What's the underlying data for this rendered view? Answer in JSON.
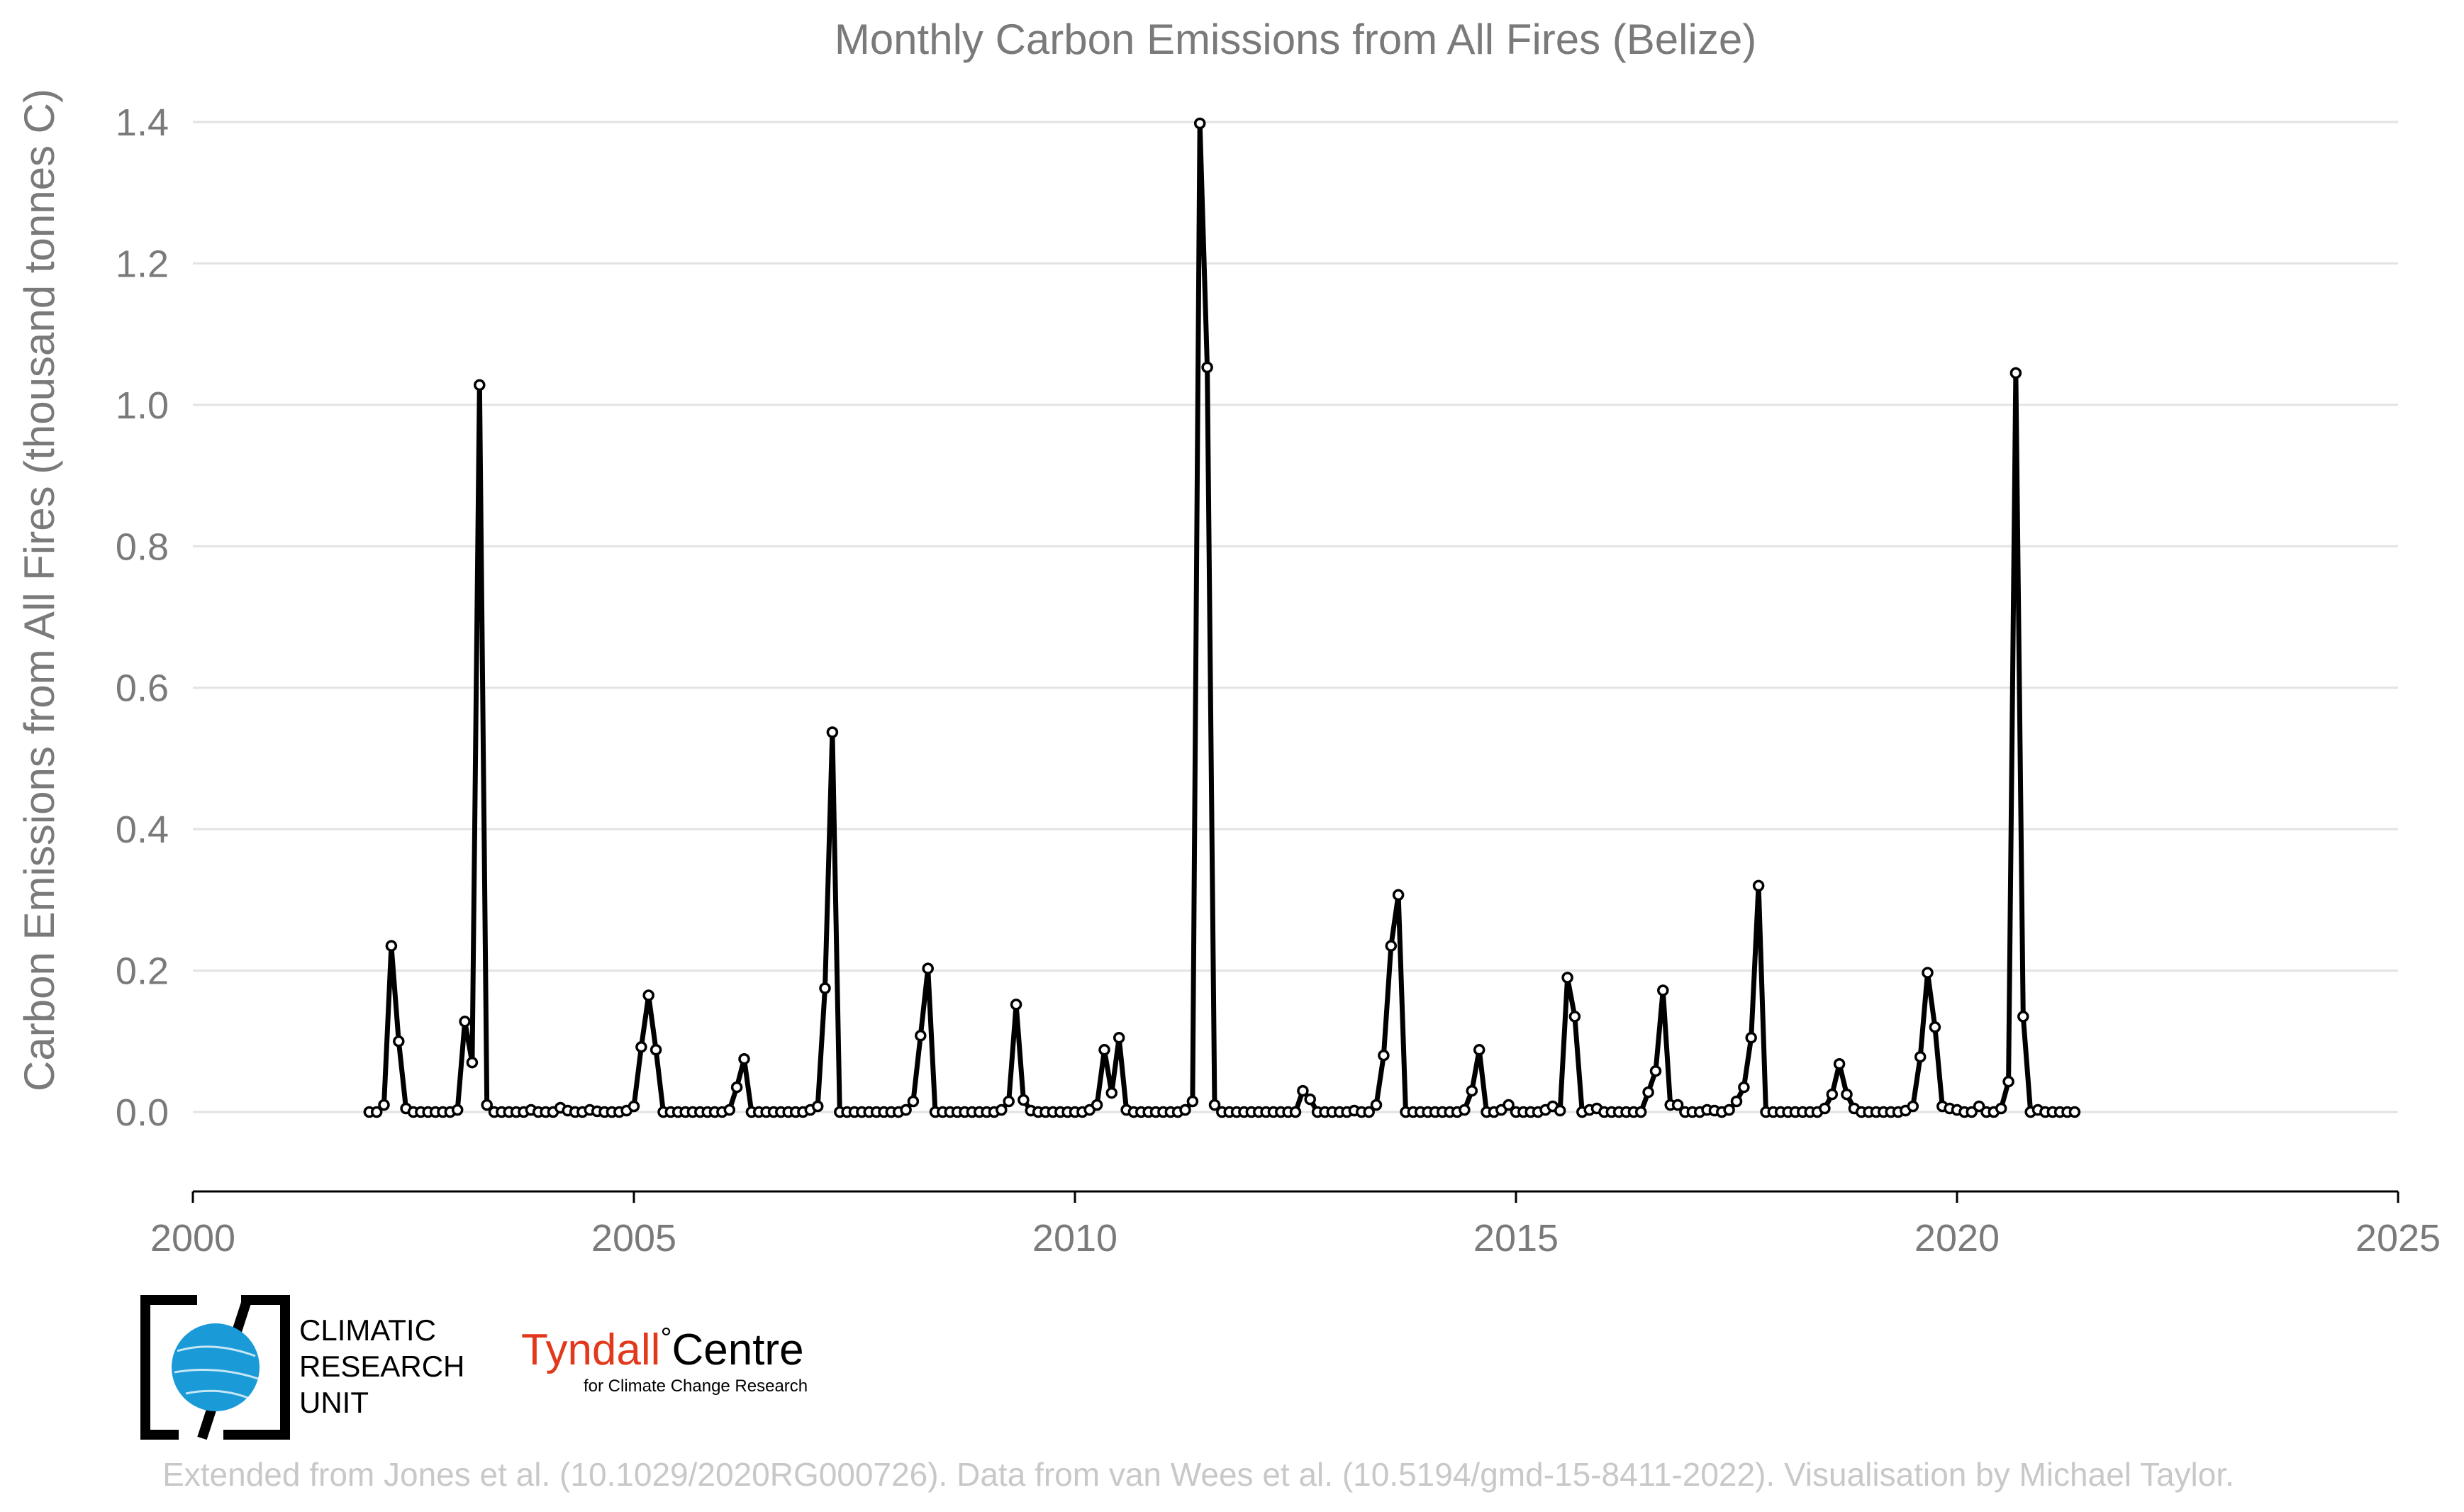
{
  "chart_data": {
    "type": "line",
    "title": "Monthly Carbon Emissions from All Fires (Belize)",
    "ylabel": "Carbon Emissions from All Fires (thousand tonnes C)",
    "xlabel": "",
    "xlim": [
      2000,
      2025
    ],
    "ylim": [
      -0.11,
      1.4
    ],
    "x_ticks": [
      "2000",
      "2005",
      "2010",
      "2015",
      "2020",
      "2025"
    ],
    "y_ticks": [
      "0.0",
      "0.2",
      "0.4",
      "0.6",
      "0.8",
      "1.0",
      "1.2",
      "1.4"
    ],
    "grid": true,
    "start_year": 2002,
    "start_month": 1,
    "series": [
      {
        "values": [
          0.0,
          0.0,
          0.01,
          0.235,
          0.1,
          0.005,
          0.0,
          0.0,
          0.0,
          0.0,
          0.0,
          0.0,
          0.003,
          0.128,
          0.07,
          1.028,
          0.01,
          0.0,
          0.0,
          0.0,
          0.0,
          0.0,
          0.003,
          0.0,
          0.0,
          0.0,
          0.006,
          0.002,
          0.0,
          0.0,
          0.003,
          0.001,
          0.0,
          0.0,
          0.0,
          0.002,
          0.008,
          0.092,
          0.165,
          0.088,
          0.0,
          0.0,
          0.0,
          0.0,
          0.0,
          0.0,
          0.0,
          0.0,
          0.0,
          0.003,
          0.035,
          0.075,
          0.0,
          0.0,
          0.0,
          0.0,
          0.0,
          0.0,
          0.0,
          0.0,
          0.003,
          0.008,
          0.175,
          0.537,
          0.0,
          0.0,
          0.0,
          0.0,
          0.0,
          0.0,
          0.0,
          0.0,
          0.0,
          0.003,
          0.015,
          0.108,
          0.203,
          0.0,
          0.0,
          0.0,
          0.0,
          0.0,
          0.0,
          0.0,
          0.0,
          0.0,
          0.003,
          0.015,
          0.152,
          0.017,
          0.002,
          0.0,
          0.0,
          0.0,
          0.0,
          0.0,
          0.0,
          0.0,
          0.003,
          0.01,
          0.088,
          0.027,
          0.105,
          0.003,
          0.0,
          0.0,
          0.0,
          0.0,
          0.0,
          0.0,
          0.0,
          0.003,
          0.015,
          1.398,
          1.053,
          0.01,
          0.0,
          0.0,
          0.0,
          0.0,
          0.0,
          0.0,
          0.0,
          0.0,
          0.0,
          0.0,
          0.0,
          0.03,
          0.018,
          0.0,
          0.0,
          0.0,
          0.0,
          0.0,
          0.002,
          0.0,
          0.0,
          0.01,
          0.08,
          0.235,
          0.307,
          0.0,
          0.0,
          0.0,
          0.0,
          0.0,
          0.0,
          0.0,
          0.0,
          0.003,
          0.03,
          0.088,
          0.0,
          0.0,
          0.003,
          0.01,
          0.0,
          0.0,
          0.0,
          0.0,
          0.003,
          0.008,
          0.002,
          0.19,
          0.135,
          0.0,
          0.003,
          0.005,
          0.0,
          0.0,
          0.0,
          0.0,
          0.0,
          0.0,
          0.028,
          0.058,
          0.172,
          0.01,
          0.01,
          0.0,
          0.0,
          0.0,
          0.003,
          0.002,
          0.0,
          0.003,
          0.015,
          0.035,
          0.105,
          0.32,
          0.0,
          0.0,
          0.0,
          0.0,
          0.0,
          0.0,
          0.0,
          0.0,
          0.005,
          0.025,
          0.068,
          0.025,
          0.005,
          0.0,
          0.0,
          0.0,
          0.0,
          0.0,
          0.0,
          0.002,
          0.008,
          0.078,
          0.197,
          0.12,
          0.008,
          0.005,
          0.003,
          0.0,
          0.0,
          0.008,
          0.0,
          0.0,
          0.005,
          0.043,
          1.045,
          0.135,
          0.0,
          0.003,
          0.0,
          0.0,
          0.0,
          0.0,
          0.0
        ]
      }
    ]
  },
  "logos": {
    "cru": {
      "lines": [
        "CLIMATIC",
        "RESEARCH",
        "UNIT"
      ]
    },
    "tyndall": {
      "name_red": "Tyndall",
      "degree": "°",
      "name_black": "Centre",
      "subtitle": "for Climate Change Research"
    }
  },
  "footer": "Extended from Jones et al. (10.1029/2020RG000726). Data from van Wees et al. (10.5194/gmd-15-8411-2022). Visualisation by Michael Taylor."
}
